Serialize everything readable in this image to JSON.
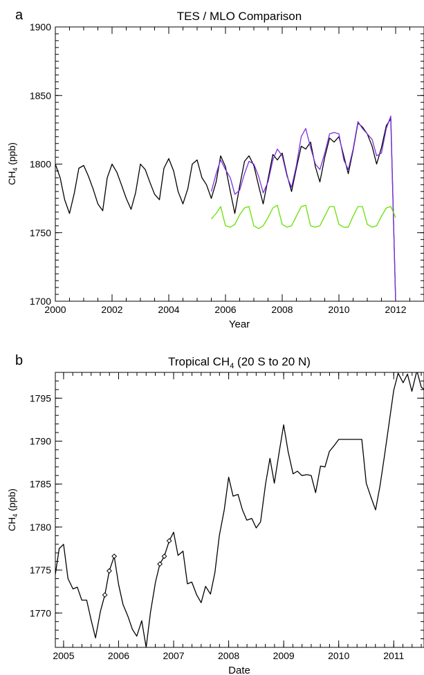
{
  "chart_data": [
    {
      "panel_label": "a",
      "type": "line",
      "title": "TES / MLO Comparison",
      "xlabel": "Year",
      "ylabel_main": "CH",
      "ylabel_sub": "4",
      "ylabel_suffix": " (ppb)",
      "xlim": [
        2000,
        2013
      ],
      "ylim": [
        1700,
        1900
      ],
      "xticks": [
        2000,
        2002,
        2004,
        2006,
        2008,
        2010,
        2012
      ],
      "xtick_labels": [
        "2000",
        "2002",
        "2004",
        "2006",
        "2008",
        "2010",
        "2012"
      ],
      "yticks": [
        1700,
        1750,
        1800,
        1850,
        1900
      ],
      "ytick_labels": [
        "1700",
        "1750",
        "1800",
        "1850",
        "1900"
      ],
      "grid": false,
      "legend": "none",
      "series": [
        {
          "color": "#000000",
          "x": [
            2000.0,
            2000.17,
            2000.33,
            2000.5,
            2000.67,
            2000.83,
            2001.0,
            2001.17,
            2001.33,
            2001.5,
            2001.67,
            2001.83,
            2002.0,
            2002.17,
            2002.33,
            2002.5,
            2002.67,
            2002.83,
            2003.0,
            2003.17,
            2003.33,
            2003.5,
            2003.67,
            2003.83,
            2004.0,
            2004.17,
            2004.33,
            2004.5,
            2004.67,
            2004.83,
            2005.0,
            2005.17,
            2005.33,
            2005.5,
            2005.67,
            2005.83,
            2006.0,
            2006.17,
            2006.33,
            2006.5,
            2006.67,
            2006.83,
            2007.0,
            2007.17,
            2007.33,
            2007.5,
            2007.67,
            2007.83,
            2008.0,
            2008.17,
            2008.33,
            2008.5,
            2008.67,
            2008.83,
            2009.0,
            2009.17,
            2009.33,
            2009.5,
            2009.67,
            2009.83,
            2010.0,
            2010.17,
            2010.33,
            2010.5,
            2010.67,
            2010.83,
            2011.0,
            2011.17,
            2011.33,
            2011.5,
            2011.67,
            2011.83,
            2012.0
          ],
          "y": [
            1800,
            1790,
            1774,
            1764,
            1779,
            1797,
            1799,
            1791,
            1782,
            1771,
            1766,
            1790,
            1800,
            1794,
            1785,
            1775,
            1767,
            1779,
            1800,
            1796,
            1787,
            1778,
            1774,
            1797,
            1804,
            1795,
            1780,
            1771,
            1782,
            1800,
            1803,
            1790,
            1785,
            1775,
            1787,
            1806,
            1798,
            1780,
            1764,
            1784,
            1802,
            1806,
            1799,
            1784,
            1771,
            1789,
            1807,
            1803,
            1808,
            1792,
            1780,
            1797,
            1813,
            1811,
            1816,
            1798,
            1787,
            1805,
            1819,
            1816,
            1820,
            1806,
            1793,
            1810,
            1830,
            1827,
            1822,
            1813,
            1800,
            1812,
            1828,
            1833,
            1700
          ]
        },
        {
          "color": "#7b2fe0",
          "x": [
            2005.5,
            2005.67,
            2005.83,
            2006.0,
            2006.17,
            2006.33,
            2006.5,
            2006.67,
            2006.83,
            2007.0,
            2007.17,
            2007.33,
            2007.5,
            2007.67,
            2007.83,
            2008.0,
            2008.17,
            2008.33,
            2008.5,
            2008.67,
            2008.83,
            2009.0,
            2009.17,
            2009.33,
            2009.5,
            2009.67,
            2009.83,
            2010.0,
            2010.17,
            2010.33,
            2010.5,
            2010.67,
            2010.83,
            2011.0,
            2011.17,
            2011.33,
            2011.5,
            2011.67,
            2011.83,
            2012.0
          ],
          "y": [
            1780,
            1793,
            1803,
            1796,
            1790,
            1778,
            1781,
            1793,
            1802,
            1800,
            1791,
            1779,
            1787,
            1803,
            1811,
            1806,
            1791,
            1783,
            1799,
            1820,
            1826,
            1812,
            1800,
            1796,
            1808,
            1822,
            1823,
            1822,
            1803,
            1796,
            1811,
            1831,
            1826,
            1822,
            1818,
            1806,
            1808,
            1826,
            1835,
            1700
          ]
        },
        {
          "color": "#66e000",
          "x": [
            2005.5,
            2005.67,
            2005.83,
            2006.0,
            2006.17,
            2006.33,
            2006.5,
            2006.67,
            2006.83,
            2007.0,
            2007.17,
            2007.33,
            2007.5,
            2007.67,
            2007.83,
            2008.0,
            2008.17,
            2008.33,
            2008.5,
            2008.67,
            2008.83,
            2009.0,
            2009.17,
            2009.33,
            2009.5,
            2009.67,
            2009.83,
            2010.0,
            2010.17,
            2010.33,
            2010.5,
            2010.67,
            2010.83,
            2011.0,
            2011.17,
            2011.33,
            2011.5,
            2011.67,
            2011.83,
            2012.0
          ],
          "y": [
            1760,
            1764,
            1769,
            1755,
            1754,
            1756,
            1763,
            1768,
            1769,
            1755,
            1753,
            1755,
            1761,
            1768,
            1770,
            1756,
            1754,
            1755,
            1762,
            1769,
            1770,
            1755,
            1754,
            1755,
            1762,
            1769,
            1769,
            1756,
            1754,
            1754,
            1762,
            1769,
            1769,
            1756,
            1754,
            1755,
            1762,
            1768,
            1769,
            1761
          ]
        }
      ]
    },
    {
      "panel_label": "b",
      "type": "line",
      "title_main": "Tropical CH",
      "title_sub": "4",
      "title_suffix": " (20 S to 20 N)",
      "xlabel": "Date",
      "ylabel_main": "CH",
      "ylabel_sub": "4",
      "ylabel_suffix": " (ppb)",
      "xlim": [
        2004.85,
        2011.55
      ],
      "ylim": [
        1766,
        1798
      ],
      "xticks": [
        2005,
        2006,
        2007,
        2008,
        2009,
        2010,
        2011
      ],
      "xtick_labels": [
        "2005",
        "2006",
        "2007",
        "2008",
        "2009",
        "2010",
        "2011"
      ],
      "yticks": [
        1770,
        1775,
        1780,
        1785,
        1790,
        1795
      ],
      "ytick_labels": [
        "1770",
        "1775",
        "1780",
        "1785",
        "1790",
        "1795"
      ],
      "grid": false,
      "legend": "none",
      "series": [
        {
          "color": "#000000",
          "x": [
            2004.85,
            2004.92,
            2005.0,
            2005.08,
            2005.17,
            2005.25,
            2005.33,
            2005.42,
            2005.5,
            2005.58,
            2005.67,
            2005.75,
            2005.83,
            2005.92,
            2006.0,
            2006.08,
            2006.17,
            2006.25,
            2006.33,
            2006.42,
            2006.5,
            2006.58,
            2006.67,
            2006.75,
            2006.83,
            2006.92,
            2007.0,
            2007.08,
            2007.17,
            2007.25,
            2007.33,
            2007.42,
            2007.5,
            2007.58,
            2007.67,
            2007.75,
            2007.83,
            2007.92,
            2008.0,
            2008.08,
            2008.17,
            2008.25,
            2008.33,
            2008.42,
            2008.5,
            2008.58,
            2008.67,
            2008.75,
            2008.83,
            2008.92,
            2009.0,
            2009.08,
            2009.17,
            2009.25,
            2009.33,
            2009.42,
            2009.5,
            2009.58,
            2009.67,
            2009.75,
            2009.83,
            2009.92,
            2010.0,
            2010.08,
            2010.17,
            2010.25,
            2010.33,
            2010.42,
            2010.5,
            2010.58,
            2010.67,
            2010.75,
            2010.83,
            2010.92,
            2011.0,
            2011.08,
            2011.17,
            2011.25,
            2011.33,
            2011.42,
            2011.5,
            2011.55
          ],
          "y": [
            1774.5,
            1777.5,
            1778.0,
            1774.0,
            1772.8,
            1773.0,
            1771.5,
            1771.5,
            1769.2,
            1767.1,
            1770.2,
            1772.1,
            1774.9,
            1776.6,
            1773.3,
            1771.0,
            1769.6,
            1768.1,
            1767.3,
            1769.1,
            1766.0,
            1770.1,
            1773.6,
            1775.7,
            1776.6,
            1778.4,
            1779.4,
            1776.7,
            1777.2,
            1773.4,
            1773.6,
            1772.1,
            1771.2,
            1773.1,
            1772.2,
            1774.7,
            1779.0,
            1782.0,
            1785.8,
            1783.6,
            1783.8,
            1782.0,
            1780.8,
            1781.0,
            1779.9,
            1780.6,
            1785.0,
            1788.0,
            1785.1,
            1788.8,
            1791.9,
            1788.8,
            1786.2,
            1786.5,
            1786.0,
            1786.1,
            1786.0,
            1784.0,
            1787.1,
            1787.0,
            1788.8,
            1789.5,
            1790.2,
            1790.2,
            1790.2,
            1790.2,
            1790.2,
            1790.2,
            1785.1,
            1783.6,
            1782.0,
            1784.8,
            1788.2,
            1792.3,
            1795.9,
            1797.9,
            1796.8,
            1797.8,
            1795.8,
            1798.2,
            1796.3,
            1796.0
          ]
        }
      ],
      "marker_points": {
        "x": [
          2005.75,
          2005.83,
          2005.92,
          2006.75,
          2006.83,
          2006.92
        ],
        "y": [
          1772.1,
          1774.9,
          1776.6,
          1775.7,
          1776.6,
          1778.4
        ]
      }
    }
  ]
}
